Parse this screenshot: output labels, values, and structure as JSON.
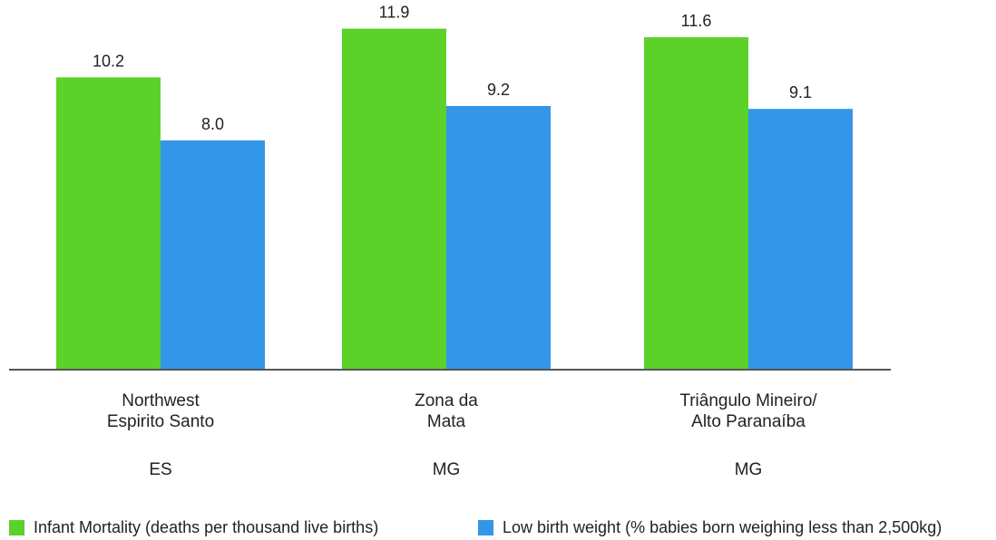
{
  "chart_data": {
    "type": "bar",
    "categories": [
      {
        "lines": [
          "Northwest",
          "Espirito Santo"
        ],
        "state": "ES"
      },
      {
        "lines": [
          "Zona da",
          "Mata"
        ],
        "state": "MG"
      },
      {
        "lines": [
          "Triângulo Mineiro/",
          "Alto Paranaíba"
        ],
        "state": "MG"
      }
    ],
    "series": [
      {
        "name": "Infant Mortality (deaths per thousand live births)",
        "color": "#5bd12a",
        "values": [
          10.2,
          11.9,
          11.6
        ],
        "labels": [
          "10.2",
          "11.9",
          "11.6"
        ]
      },
      {
        "name": "Low birth weight (% babies born weighing less than 2,500kg)",
        "color": "#3396e8",
        "values": [
          8.0,
          9.2,
          9.1
        ],
        "labels": [
          "8.0",
          "9.2",
          "9.1"
        ]
      }
    ],
    "ylim": [
      0,
      12.9
    ],
    "grid": false,
    "legend_position": "bottom"
  }
}
